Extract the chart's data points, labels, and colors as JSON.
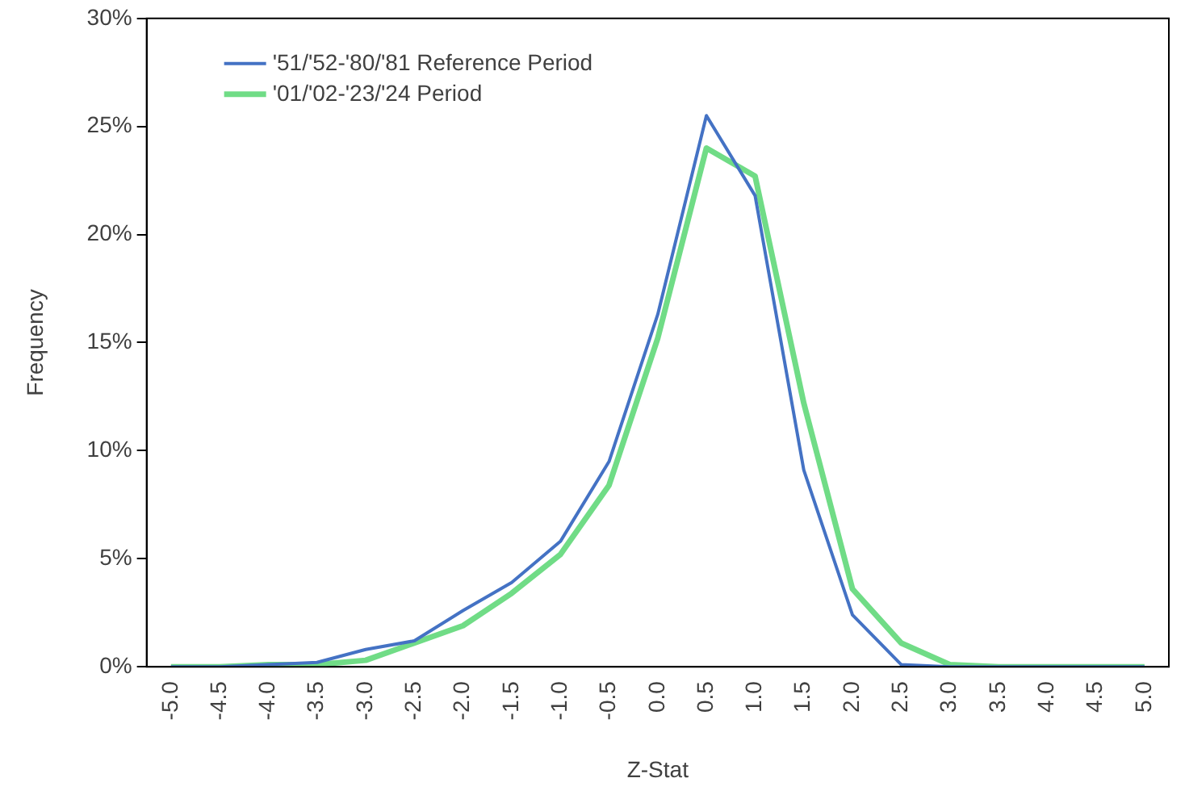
{
  "chart_data": {
    "type": "line",
    "xlabel": "Z-Stat",
    "ylabel": "Frequency",
    "categories": [
      "-5.0",
      "-4.5",
      "-4.0",
      "-3.5",
      "-3.0",
      "-2.5",
      "-2.0",
      "-1.5",
      "-1.0",
      "-0.5",
      "0.0",
      "0.5",
      "1.0",
      "1.5",
      "2.0",
      "2.5",
      "3.0",
      "3.5",
      "4.0",
      "4.5",
      "5.0"
    ],
    "series": [
      {
        "name": "'51/'52-'80/'81 Reference Period",
        "color": "#4472c4",
        "values": [
          0,
          0,
          0.1,
          0.2,
          0.8,
          1.2,
          2.6,
          3.9,
          5.8,
          9.5,
          16.3,
          25.5,
          21.8,
          9.1,
          2.4,
          0.1,
          0,
          0,
          0,
          0,
          0
        ]
      },
      {
        "name": "'01/'02-'23/'24 Period",
        "color": "#70dc86",
        "values": [
          0,
          0,
          0.1,
          0.1,
          0.3,
          1.1,
          1.9,
          3.4,
          5.2,
          8.4,
          15.2,
          24.0,
          22.7,
          12.2,
          3.6,
          1.1,
          0.1,
          0,
          0,
          0,
          0
        ]
      }
    ],
    "ylim": [
      0,
      30
    ],
    "yticks": [
      {
        "value": 0,
        "label": "0%"
      },
      {
        "value": 5,
        "label": "5%"
      },
      {
        "value": 10,
        "label": "10%"
      },
      {
        "value": 15,
        "label": "15%"
      },
      {
        "value": 20,
        "label": "20%"
      },
      {
        "value": 25,
        "label": "25%"
      },
      {
        "value": 30,
        "label": "30%"
      }
    ],
    "legend": "top left",
    "grid": false,
    "marker": "none",
    "line_style": "solid"
  }
}
